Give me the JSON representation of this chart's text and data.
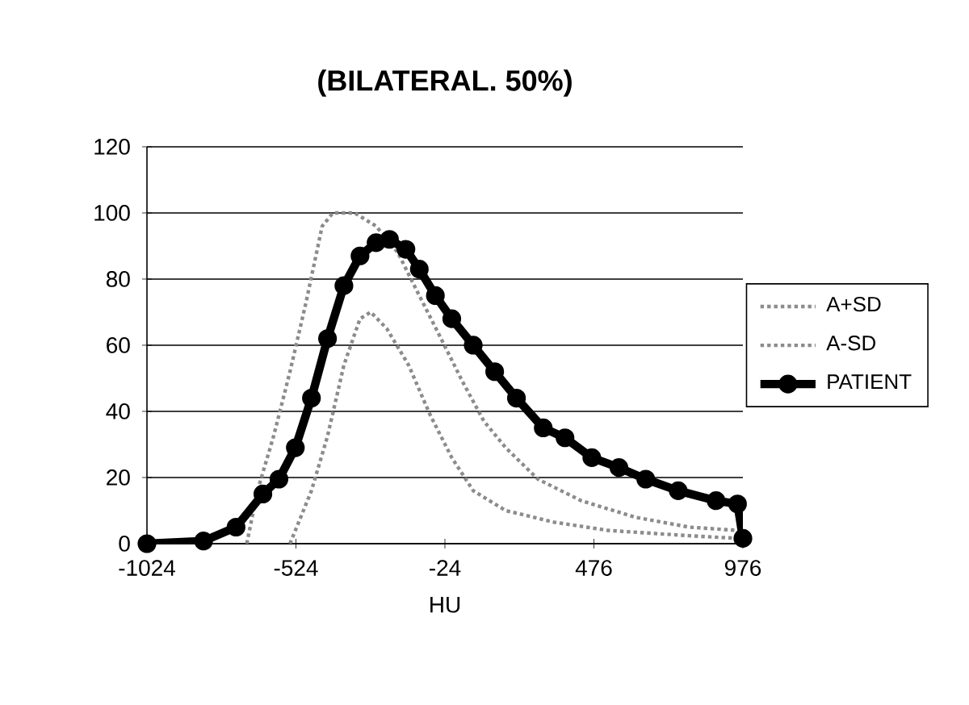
{
  "chart_data": {
    "type": "line",
    "title": "(BILATERAL. 50%)",
    "xlabel": "HU",
    "xlim": [
      -1024,
      976
    ],
    "xticks": [
      -1024,
      -524,
      -24,
      476,
      976
    ],
    "ylim": [
      0,
      120
    ],
    "yticks": [
      0,
      20,
      40,
      60,
      80,
      100,
      120
    ],
    "grid": "y",
    "legend": "right",
    "series": [
      {
        "name": "A+SD",
        "color": "#8c8c8c",
        "line_style": "dotted",
        "marker": "none",
        "x": [
          -689,
          -653,
          -599,
          -544,
          -490,
          -436,
          -400,
          -327,
          -255,
          -182,
          -110,
          -37,
          35,
          107,
          180,
          288,
          433,
          614,
          795,
          958,
          976
        ],
        "values": [
          0,
          16,
          32.5,
          52,
          73,
          96,
          100,
          100,
          96,
          88,
          75,
          62,
          49,
          37,
          29,
          19.5,
          13,
          8,
          5,
          4,
          0
        ]
      },
      {
        "name": "A-SD",
        "color": "#8c8c8c",
        "line_style": "dotted",
        "marker": "none",
        "x": [
          -544,
          -472,
          -418,
          -363,
          -309,
          -273,
          -219,
          -146,
          -74,
          -1,
          71,
          180,
          342,
          523,
          795,
          958,
          976
        ],
        "values": [
          0,
          16,
          32.5,
          54,
          68,
          70,
          65,
          54,
          39,
          26,
          16,
          10,
          6.5,
          4,
          2.4,
          1.6,
          0
        ]
      },
      {
        "name": "PATIENT",
        "color": "#000000",
        "line_style": "solid",
        "marker": "circle",
        "x": [
          -1024,
          -834,
          -725,
          -635,
          -581,
          -526,
          -472,
          -418,
          -363,
          -309,
          -255,
          -210,
          -155,
          -110,
          -56,
          -1,
          71,
          143,
          216,
          306,
          379,
          469,
          560,
          650,
          759,
          886,
          958,
          976
        ],
        "values": [
          0,
          0.8,
          5,
          15,
          19.5,
          29,
          44,
          62,
          78,
          87,
          91,
          92,
          89,
          83,
          75,
          68,
          60,
          52,
          44,
          35,
          32,
          26,
          23,
          19.5,
          16,
          13,
          12,
          1.6
        ]
      }
    ]
  }
}
